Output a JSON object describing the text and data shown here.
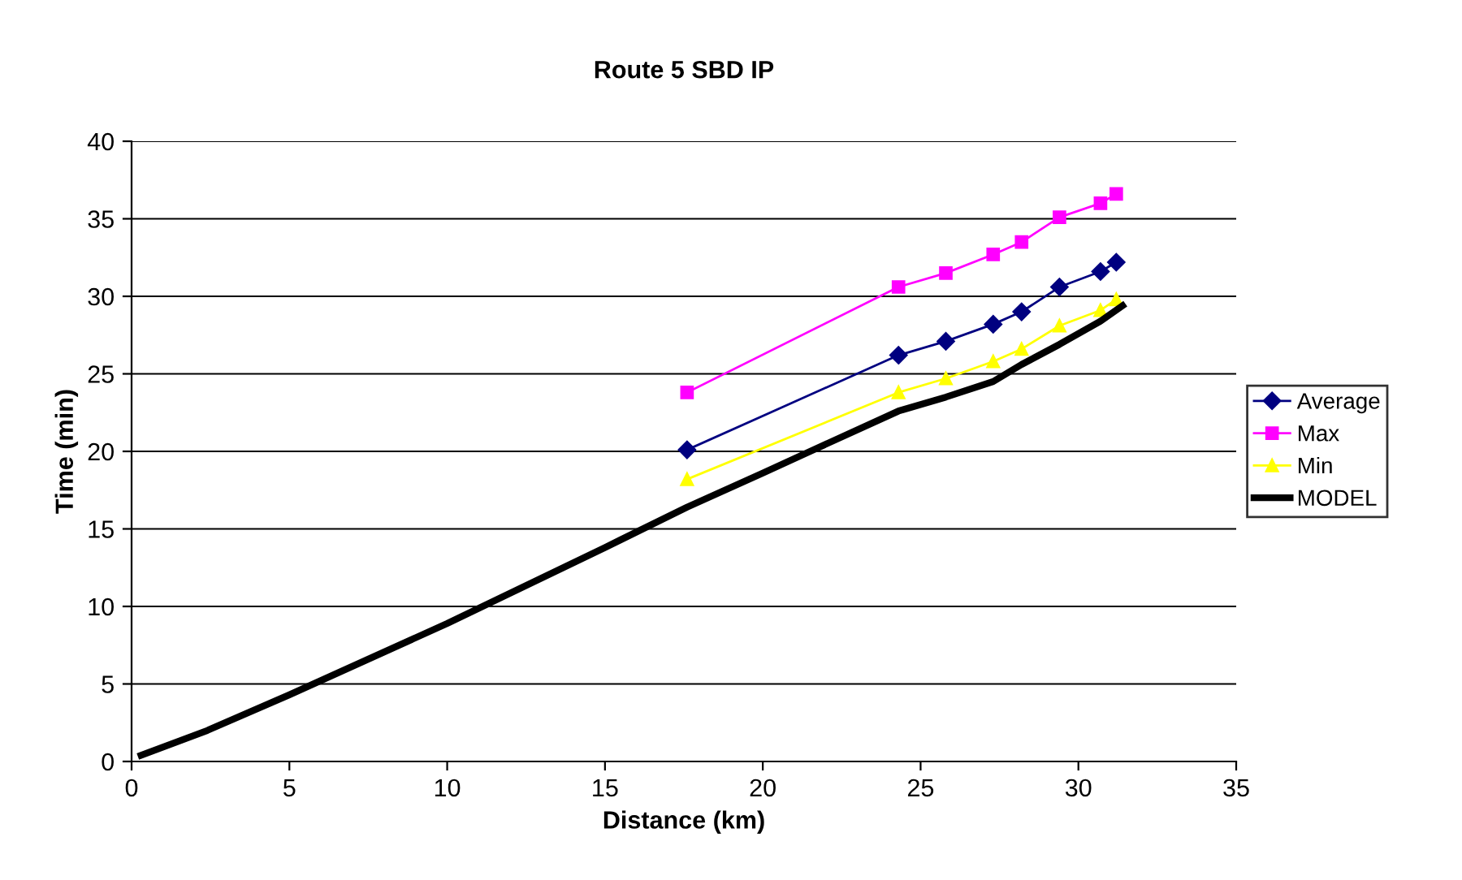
{
  "chart_data": {
    "type": "line",
    "title": "Route 5 SBD IP",
    "xlabel": "Distance (km)",
    "ylabel": "Time (min)",
    "xlim": [
      0,
      35
    ],
    "xticks": [
      0,
      5,
      10,
      15,
      20,
      25,
      30,
      35
    ],
    "ylim": [
      0,
      40
    ],
    "yticks": [
      0,
      5,
      10,
      15,
      20,
      25,
      30,
      35,
      40
    ],
    "grid": "y",
    "legend": "right",
    "series": [
      {
        "name": "Average",
        "color": "#000080",
        "marker": "diamond",
        "x": [
          17.6,
          24.3,
          25.8,
          27.3,
          28.2,
          29.4,
          30.7,
          31.2
        ],
        "values": [
          20.1,
          26.2,
          27.1,
          28.2,
          29.0,
          30.6,
          31.6,
          32.2
        ]
      },
      {
        "name": "Max",
        "color": "#ff00ff",
        "marker": "square",
        "x": [
          17.6,
          24.3,
          25.8,
          27.3,
          28.2,
          29.4,
          30.7,
          31.2
        ],
        "values": [
          23.8,
          30.6,
          31.5,
          32.7,
          33.5,
          35.1,
          36.0,
          36.6
        ]
      },
      {
        "name": "Min",
        "color": "#ffff00",
        "marker": "triangle",
        "x": [
          17.6,
          24.3,
          25.8,
          27.3,
          28.2,
          29.4,
          30.7,
          31.2
        ],
        "values": [
          18.2,
          23.8,
          24.7,
          25.8,
          26.6,
          28.1,
          29.1,
          29.8
        ]
      },
      {
        "name": "MODEL",
        "color": "#000000",
        "marker": "none",
        "x": [
          0.3,
          2.4,
          5,
          10,
          15,
          17.6,
          20,
          21.5,
          24.3,
          25.8,
          27.3,
          28.2,
          29.4,
          30.7,
          31.4
        ],
        "values": [
          0.4,
          2.0,
          4.3,
          8.9,
          13.8,
          16.4,
          18.6,
          20.0,
          22.6,
          23.5,
          24.5,
          25.6,
          26.9,
          28.4,
          29.4
        ]
      }
    ]
  }
}
